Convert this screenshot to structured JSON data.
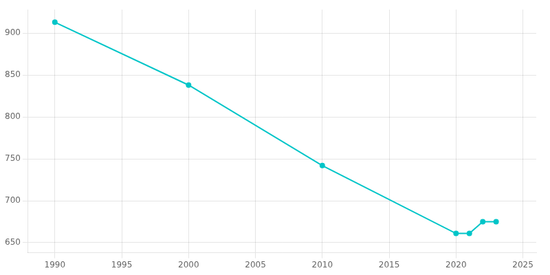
{
  "chart_data": {
    "type": "line",
    "x": [
      1990,
      2000,
      2010,
      2020,
      2021,
      2022,
      2023
    ],
    "values": [
      913,
      838,
      742,
      661,
      661,
      675,
      675
    ],
    "color": "#00C5C8",
    "marker": "circle",
    "xlim": [
      1988,
      2026
    ],
    "ylim": [
      638,
      928
    ],
    "xticks": [
      1990,
      1995,
      2000,
      2005,
      2010,
      2015,
      2020,
      2025
    ],
    "yticks": [
      650,
      700,
      750,
      800,
      850,
      900
    ],
    "grid": true
  }
}
